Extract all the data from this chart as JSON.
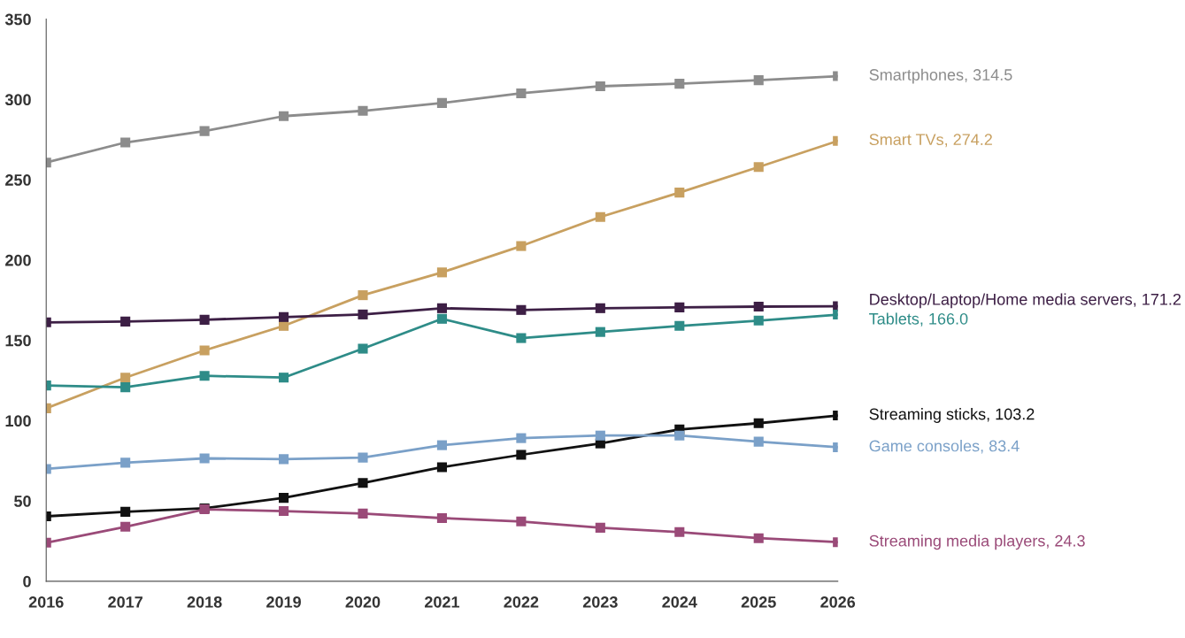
{
  "chart_data": {
    "type": "line",
    "x": [
      2016,
      2017,
      2018,
      2019,
      2020,
      2021,
      2022,
      2023,
      2024,
      2025,
      2026
    ],
    "xlim": [
      2016,
      2026
    ],
    "xticks": [
      2016,
      2017,
      2018,
      2019,
      2020,
      2021,
      2022,
      2023,
      2024,
      2025,
      2026
    ],
    "ylim": [
      0,
      350
    ],
    "yticks": [
      0,
      50,
      100,
      150,
      200,
      250,
      300,
      350
    ],
    "grid": false,
    "legend": false,
    "marker": "square",
    "line_style": "solid",
    "series": [
      {
        "color": "#8c8c8c",
        "values": [
          260.7,
          273.2,
          280.3,
          289.6,
          292.9,
          297.8,
          303.8,
          308.2,
          309.8,
          312.0,
          314.5
        ]
      },
      {
        "color": "#c8a060",
        "values": [
          107.7,
          126.8,
          143.7,
          159.0,
          178.1,
          192.3,
          208.7,
          226.8,
          242.0,
          257.9,
          274.2
        ]
      },
      {
        "color": "#3d1f45",
        "values": [
          161.2,
          161.7,
          162.8,
          164.5,
          166.1,
          170.0,
          168.9,
          170.0,
          170.5,
          171.0,
          171.2
        ]
      },
      {
        "color": "#2e8c88",
        "values": [
          121.9,
          120.8,
          127.9,
          126.8,
          144.8,
          163.4,
          151.4,
          155.2,
          159.0,
          162.3,
          166.0
        ]
      },
      {
        "color": "#111111",
        "values": [
          40.4,
          43.2,
          45.4,
          51.9,
          61.2,
          71.0,
          78.7,
          85.8,
          94.5,
          98.4,
          103.2
        ]
      },
      {
        "color": "#7aa0c8",
        "values": [
          69.9,
          73.8,
          76.5,
          76.0,
          77.0,
          84.7,
          89.1,
          90.7,
          90.7,
          86.9,
          83.4
        ]
      },
      {
        "color": "#9a4a78",
        "values": [
          24.0,
          33.9,
          44.8,
          43.7,
          42.1,
          39.3,
          37.2,
          33.3,
          30.6,
          26.8,
          24.3
        ]
      }
    ],
    "annotations": [
      "Smartphones, 314.5",
      "Smart TVs, 274.2",
      "Desktop/Laptop/Home media servers, 171.2",
      "Tablets, 166.0",
      "Streaming sticks, 103.2",
      "Game consoles, 83.4",
      "Streaming media players, 24.3"
    ]
  }
}
